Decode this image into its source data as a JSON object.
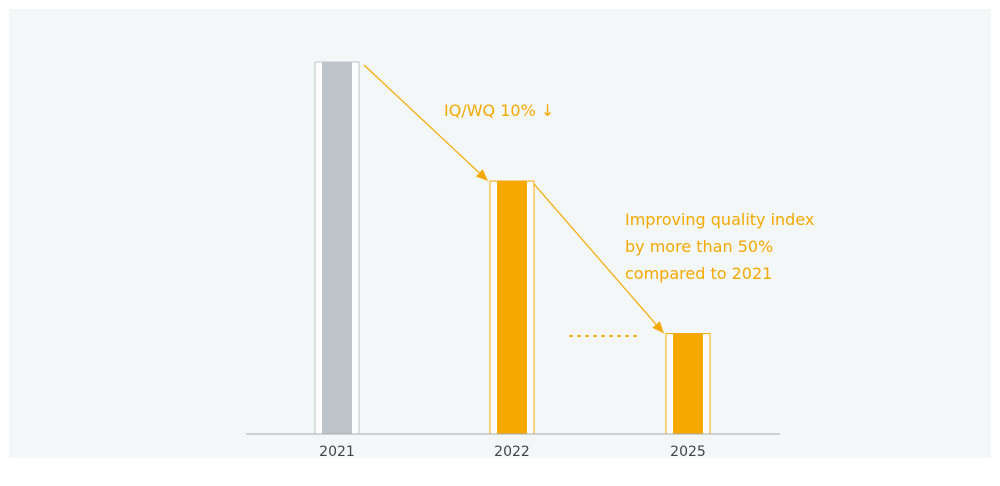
{
  "chart_data": {
    "type": "bar",
    "categories": [
      "2021",
      "2022",
      "2025"
    ],
    "values": [
      100,
      68,
      27
    ],
    "ylim": [
      0,
      100
    ],
    "grid": false,
    "legend": "none",
    "annotations": {
      "first": "IQ/WQ 10% ↓",
      "second": [
        "Improving quality index",
        "by more than 50%",
        "compared to 2021"
      ]
    }
  },
  "colors": {
    "background": "#f4f7f8",
    "baseline_bar": "#bcc3c9",
    "target_bar": "#f5a800",
    "annotation": "#f5a800",
    "axis": "#aaaaaa",
    "tick_text": "#444444"
  }
}
